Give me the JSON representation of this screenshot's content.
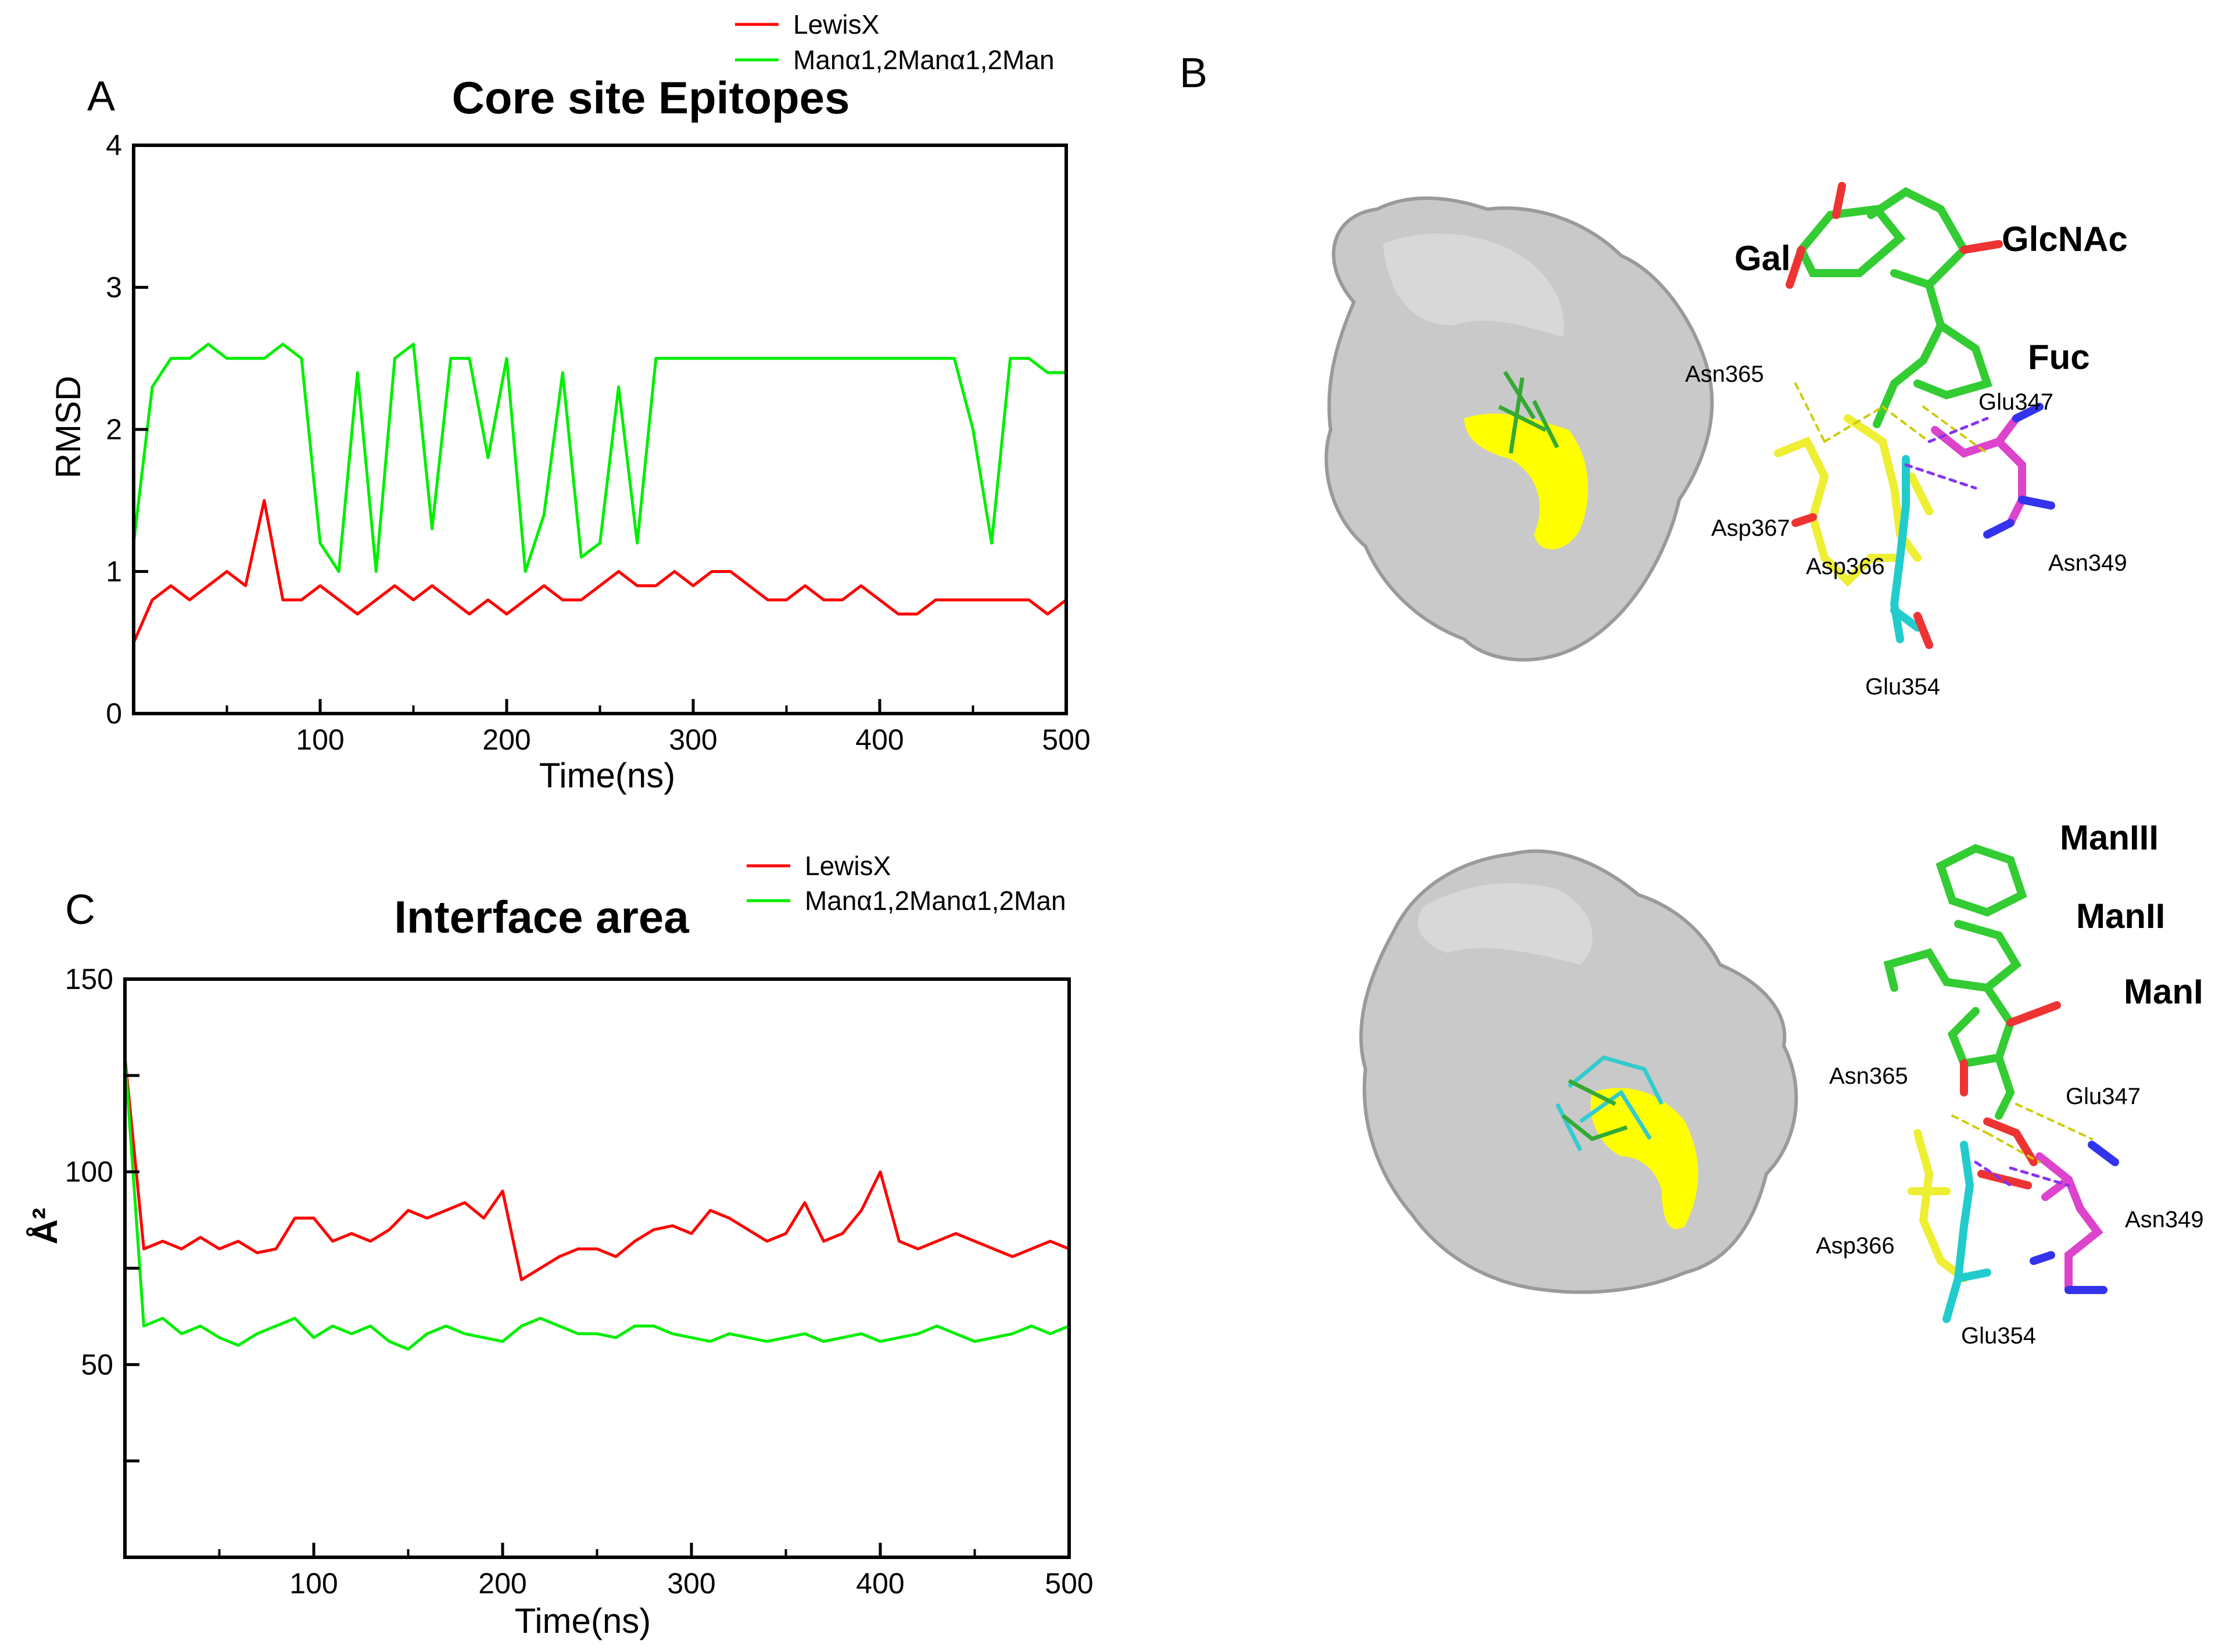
{
  "panels": {
    "A": "A",
    "B": "B",
    "C": "C"
  },
  "chart_data": [
    {
      "type": "line",
      "panel": "A",
      "title": "Core site Epitopes",
      "xlabel": "Time(ns)",
      "ylabel": "RMSD",
      "xlim": [
        0,
        500
      ],
      "ylim": [
        0,
        4
      ],
      "xticks": [
        "100",
        "200",
        "300",
        "400",
        "500"
      ],
      "yticks": [
        "0",
        "1",
        "2",
        "3",
        "4"
      ],
      "legend_position": "top-right",
      "series": [
        {
          "name": "LewisX",
          "color": "#ff0000",
          "x": [
            0,
            10,
            20,
            30,
            40,
            50,
            60,
            70,
            80,
            90,
            100,
            110,
            120,
            130,
            140,
            150,
            160,
            170,
            180,
            190,
            200,
            210,
            220,
            230,
            240,
            250,
            260,
            270,
            280,
            290,
            300,
            310,
            320,
            330,
            340,
            350,
            360,
            370,
            380,
            390,
            400,
            410,
            420,
            430,
            440,
            450,
            460,
            470,
            480,
            490,
            500
          ],
          "values": [
            0.5,
            0.8,
            0.9,
            0.8,
            0.9,
            1.0,
            0.9,
            1.5,
            0.8,
            0.8,
            0.9,
            0.8,
            0.7,
            0.8,
            0.9,
            0.8,
            0.9,
            0.8,
            0.7,
            0.8,
            0.7,
            0.8,
            0.9,
            0.8,
            0.8,
            0.9,
            1.0,
            0.9,
            0.9,
            1.0,
            0.9,
            1.0,
            1.0,
            0.9,
            0.8,
            0.8,
            0.9,
            0.8,
            0.8,
            0.9,
            0.8,
            0.7,
            0.7,
            0.8,
            0.8,
            0.8,
            0.8,
            0.8,
            0.8,
            0.7,
            0.8
          ]
        },
        {
          "name": "Manα1,2Manα1,2Man",
          "color": "#00ee00",
          "x": [
            0,
            10,
            20,
            30,
            40,
            50,
            60,
            70,
            80,
            90,
            100,
            110,
            120,
            130,
            140,
            150,
            160,
            170,
            180,
            190,
            200,
            210,
            220,
            230,
            240,
            250,
            260,
            270,
            280,
            290,
            300,
            310,
            320,
            330,
            340,
            350,
            360,
            370,
            380,
            390,
            400,
            410,
            420,
            430,
            440,
            450,
            460,
            470,
            480,
            490,
            500
          ],
          "values": [
            1.2,
            2.3,
            2.5,
            2.5,
            2.6,
            2.5,
            2.5,
            2.5,
            2.6,
            2.5,
            1.2,
            1.0,
            2.4,
            1.0,
            2.5,
            2.6,
            1.3,
            2.5,
            2.5,
            1.8,
            2.5,
            1.0,
            1.4,
            2.4,
            1.1,
            1.2,
            2.3,
            1.2,
            2.5,
            2.5,
            2.5,
            2.5,
            2.5,
            2.5,
            2.5,
            2.5,
            2.5,
            2.5,
            2.5,
            2.5,
            2.5,
            2.5,
            2.5,
            2.5,
            2.5,
            2.0,
            1.2,
            2.5,
            2.5,
            2.4,
            2.4
          ]
        }
      ]
    },
    {
      "type": "line",
      "panel": "C",
      "title": "Interface area",
      "xlabel": "Time(ns)",
      "ylabel": "Å²",
      "xlim": [
        0,
        500
      ],
      "ylim": [
        0,
        150
      ],
      "xticks": [
        "100",
        "200",
        "300",
        "400",
        "500"
      ],
      "yticks": [
        "50",
        "100",
        "150"
      ],
      "legend_position": "top-right",
      "series": [
        {
          "name": "LewisX",
          "color": "#ff0000",
          "x": [
            0,
            10,
            20,
            30,
            40,
            50,
            60,
            70,
            80,
            90,
            100,
            110,
            120,
            130,
            140,
            150,
            160,
            170,
            180,
            190,
            200,
            210,
            220,
            230,
            240,
            250,
            260,
            270,
            280,
            290,
            300,
            310,
            320,
            330,
            340,
            350,
            360,
            370,
            380,
            390,
            400,
            410,
            420,
            430,
            440,
            450,
            460,
            470,
            480,
            490,
            500
          ],
          "values": [
            130,
            80,
            82,
            80,
            83,
            80,
            82,
            79,
            80,
            88,
            88,
            82,
            84,
            82,
            85,
            90,
            88,
            90,
            92,
            88,
            95,
            72,
            75,
            78,
            80,
            80,
            78,
            82,
            85,
            86,
            84,
            90,
            88,
            85,
            82,
            84,
            92,
            82,
            84,
            90,
            100,
            82,
            80,
            82,
            84,
            82,
            80,
            78,
            80,
            82,
            80
          ]
        },
        {
          "name": "Manα1,2Manα1,2Man",
          "color": "#00ee00",
          "x": [
            0,
            10,
            20,
            30,
            40,
            50,
            60,
            70,
            80,
            90,
            100,
            110,
            120,
            130,
            140,
            150,
            160,
            170,
            180,
            190,
            200,
            210,
            220,
            230,
            240,
            250,
            260,
            270,
            280,
            290,
            300,
            310,
            320,
            330,
            340,
            350,
            360,
            370,
            380,
            390,
            400,
            410,
            420,
            430,
            440,
            450,
            460,
            470,
            480,
            490,
            500
          ],
          "values": [
            130,
            60,
            62,
            58,
            60,
            57,
            55,
            58,
            60,
            62,
            57,
            60,
            58,
            60,
            56,
            54,
            58,
            60,
            58,
            57,
            56,
            60,
            62,
            60,
            58,
            58,
            57,
            60,
            60,
            58,
            57,
            56,
            58,
            57,
            56,
            57,
            58,
            56,
            57,
            58,
            56,
            57,
            58,
            60,
            58,
            56,
            57,
            58,
            60,
            58,
            60
          ]
        }
      ]
    }
  ],
  "panel_b": {
    "top": {
      "sugars": [
        "Gal",
        "GlcNAc",
        "Fuc"
      ],
      "residues": [
        "Asn365",
        "Glu347",
        "Asp367",
        "Asp366",
        "Asn349",
        "Glu354"
      ]
    },
    "bottom": {
      "sugars": [
        "ManIII",
        "ManII",
        "ManI"
      ],
      "residues": [
        "Asn365",
        "Glu347",
        "Asp366",
        "Asn349",
        "Glu354"
      ]
    }
  }
}
